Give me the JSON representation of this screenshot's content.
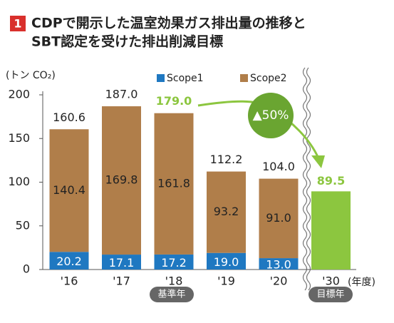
{
  "section_number": "1",
  "title_lines": [
    "CDPで開示した温室効果ガス排出量の推移と",
    "SBT認定を受けた排出削減目標"
  ],
  "chart_data": {
    "type": "stacked-bar",
    "y_label": "(トン CO₂)",
    "x_label": "(年度)",
    "categories": [
      "'16",
      "'17",
      "'18",
      "'19",
      "'20",
      "'30"
    ],
    "series": [
      {
        "name": "Scope1",
        "color": "#1f78c1",
        "values": [
          20.2,
          17.1,
          17.2,
          19.0,
          13.0,
          null
        ],
        "value_labels": [
          "20.2",
          "17.1",
          "17.2",
          "19.0",
          "13.0",
          null
        ]
      },
      {
        "name": "Scope2",
        "color": "#b07e4a",
        "values": [
          140.4,
          169.8,
          161.8,
          93.2,
          91.0,
          null
        ],
        "value_labels": [
          "140.4",
          "169.8",
          "161.8",
          "93.2",
          "91.0",
          null
        ]
      }
    ],
    "totals": {
      "values": [
        160.6,
        187.0,
        179.0,
        112.2,
        104.0
      ],
      "value_labels": [
        "160.6",
        "187.0",
        "179.0",
        "112.2",
        "104.0"
      ]
    },
    "target": {
      "value": 89.5,
      "value_label": "89.5",
      "color": "#8cc63f"
    },
    "reduction_label": "▲50%",
    "base_year_badge": "基準年",
    "target_year_badge": "目標年",
    "ylim": [
      0,
      200
    ],
    "yticks": [
      0,
      50,
      100,
      150,
      200
    ]
  }
}
